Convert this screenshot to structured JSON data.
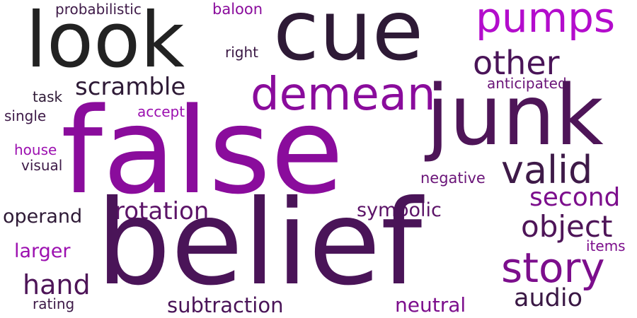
{
  "words": [
    {
      "text": "false",
      "color": "#8a0c9c",
      "weight": 1.0
    },
    {
      "text": "belief",
      "color": "#4a1458",
      "weight": 0.97
    },
    {
      "text": "cue",
      "color": "#2e1a36",
      "weight": 0.72
    },
    {
      "text": "look",
      "color": "#222222",
      "weight": 0.68
    },
    {
      "text": "junk",
      "color": "#4e1558",
      "weight": 0.66
    },
    {
      "text": "demean",
      "color": "#8a0c9c",
      "weight": 0.38
    },
    {
      "text": "pumps",
      "color": "#b30ccc",
      "weight": 0.36
    },
    {
      "text": "story",
      "color": "#7c0e8c",
      "weight": 0.32
    },
    {
      "text": "valid",
      "color": "#3e1a48",
      "weight": 0.28
    },
    {
      "text": "other",
      "color": "#4a1458",
      "weight": 0.27
    },
    {
      "text": "object",
      "color": "#4e1558",
      "weight": 0.22
    },
    {
      "text": "second",
      "color": "#7c0e8c",
      "weight": 0.2
    },
    {
      "text": "scramble",
      "color": "#2e1a36",
      "weight": 0.18
    },
    {
      "text": "rotation",
      "color": "#5c1468",
      "weight": 0.18
    },
    {
      "text": "audio",
      "color": "#3a1844",
      "weight": 0.17
    },
    {
      "text": "hand",
      "color": "#4e1558",
      "weight": 0.17
    },
    {
      "text": "subtraction",
      "color": "#4a1458",
      "weight": 0.15
    },
    {
      "text": "symbolic",
      "color": "#5c1468",
      "weight": 0.14
    },
    {
      "text": "operand",
      "color": "#2e1a36",
      "weight": 0.14
    },
    {
      "text": "neutral",
      "color": "#7c0e8c",
      "weight": 0.13
    },
    {
      "text": "larger",
      "color": "#9c10b0",
      "weight": 0.13
    },
    {
      "text": "negative",
      "color": "#6a1478",
      "weight": 0.1
    },
    {
      "text": "anticipated",
      "color": "#6a1478",
      "weight": 0.09
    },
    {
      "text": "probabilistic",
      "color": "#3e1a48",
      "weight": 0.09
    },
    {
      "text": "baloon",
      "color": "#8a0c9c",
      "weight": 0.09
    },
    {
      "text": "accept",
      "color": "#9c10b0",
      "weight": 0.09
    },
    {
      "text": "single",
      "color": "#3e1a48",
      "weight": 0.09
    },
    {
      "text": "task",
      "color": "#2e1a36",
      "weight": 0.09
    },
    {
      "text": "right",
      "color": "#3a1844",
      "weight": 0.09
    },
    {
      "text": "house",
      "color": "#9c10b0",
      "weight": 0.08
    },
    {
      "text": "visual",
      "color": "#3e1a48",
      "weight": 0.08
    },
    {
      "text": "items",
      "color": "#7c0e8c",
      "weight": 0.08
    },
    {
      "text": "rating",
      "color": "#3e1a48",
      "weight": 0.08
    }
  ]
}
